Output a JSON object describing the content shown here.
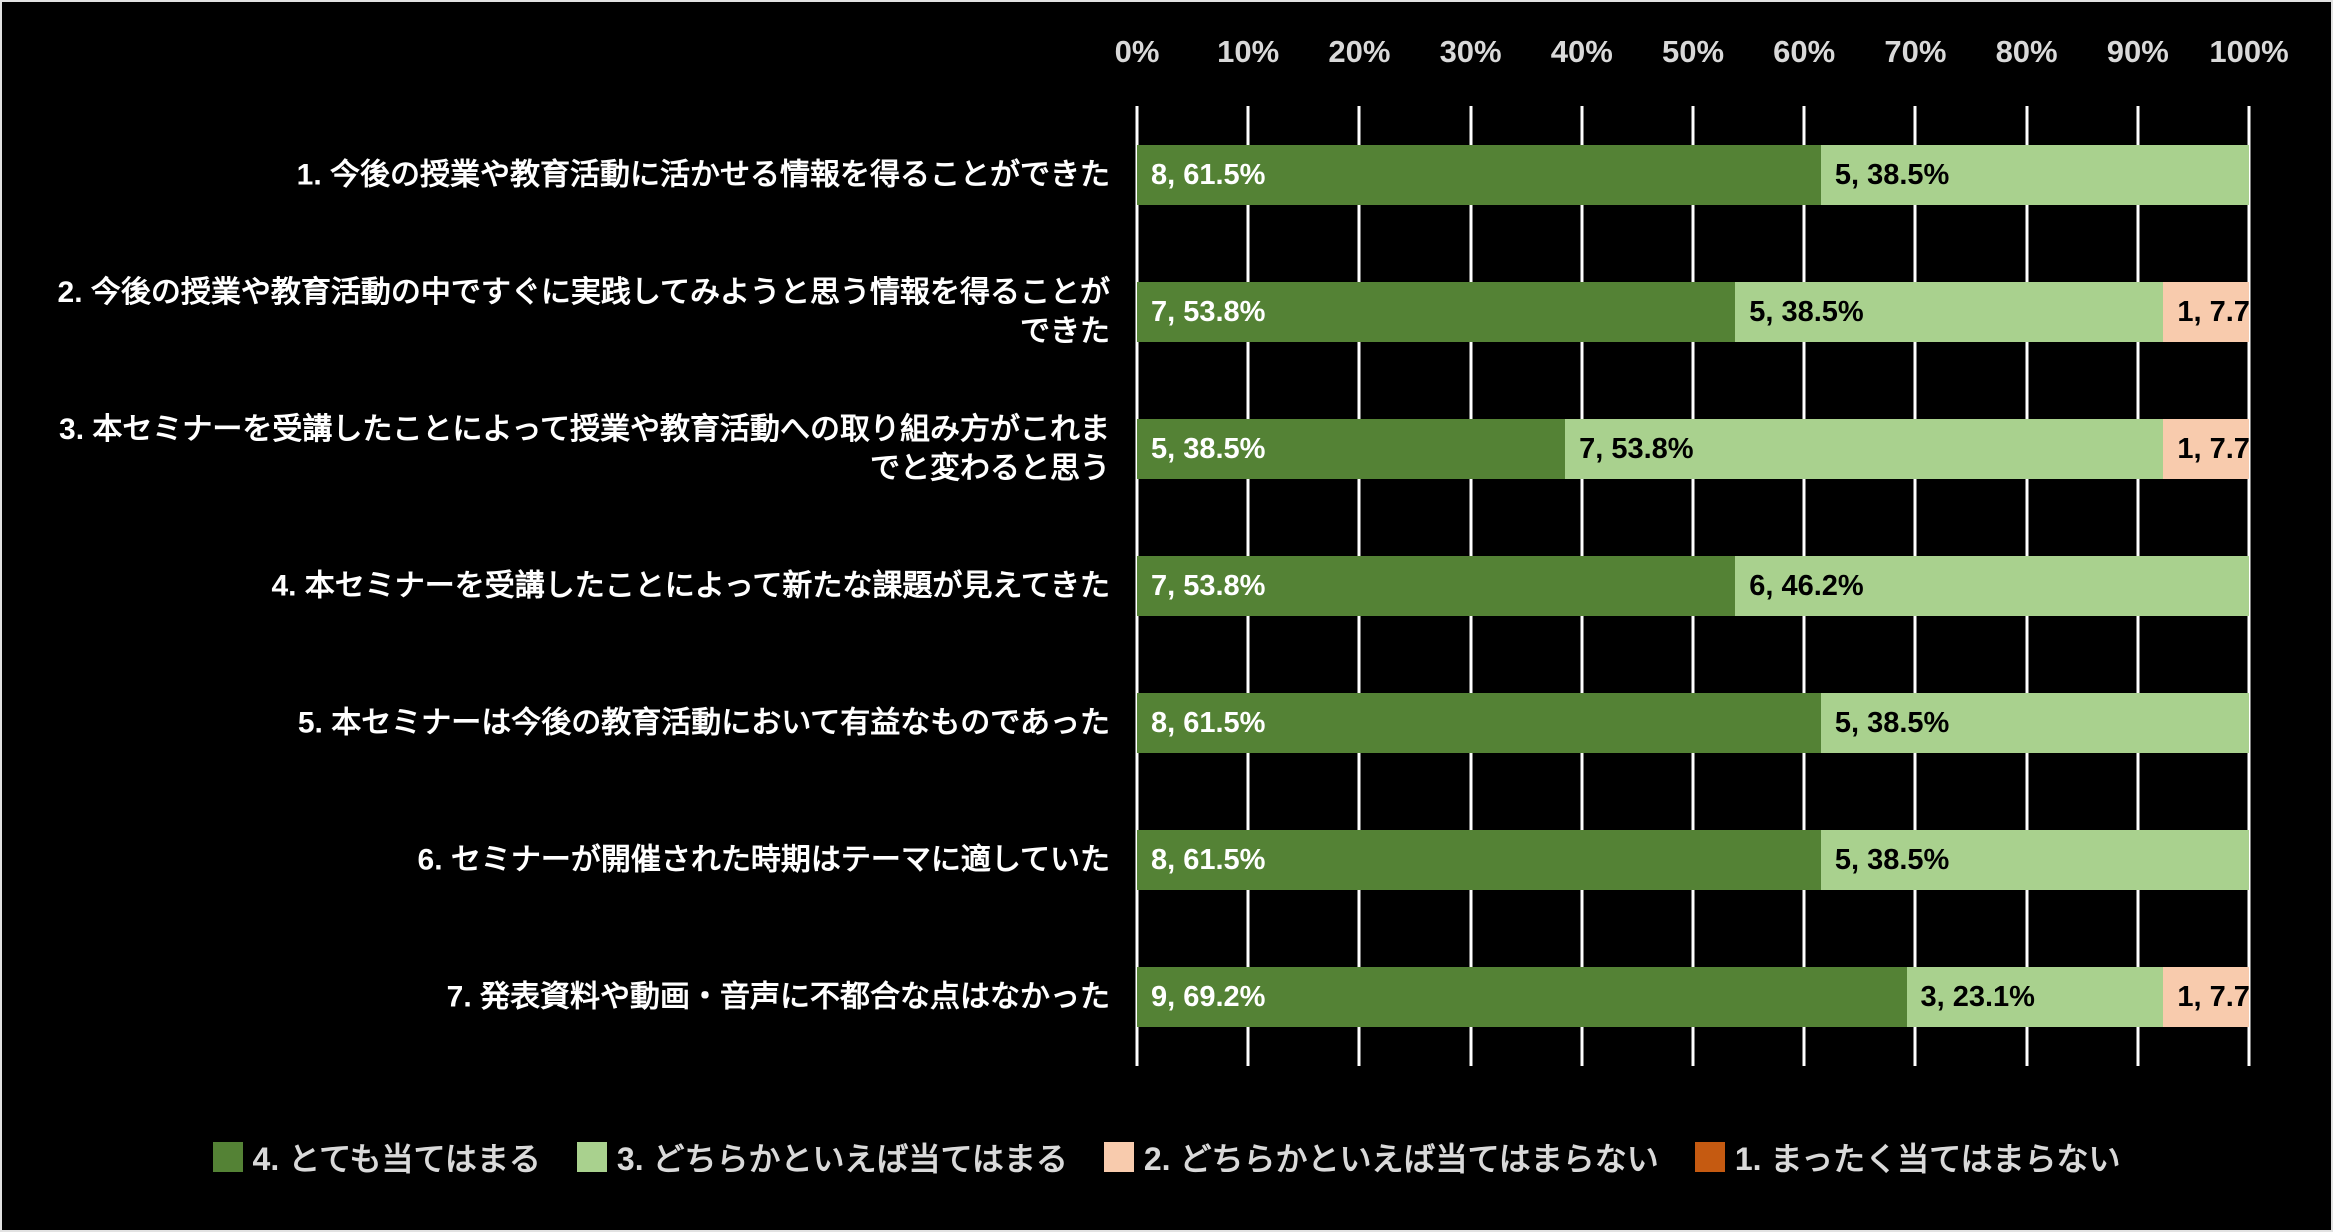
{
  "chart_data": {
    "type": "bar",
    "orientation": "horizontal_stacked",
    "title": "",
    "xlabel": "",
    "ylabel": "",
    "xlim": [
      0,
      100
    ],
    "x_ticks": [
      "0%",
      "10%",
      "20%",
      "30%",
      "40%",
      "50%",
      "60%",
      "70%",
      "80%",
      "90%",
      "100%"
    ],
    "grid": true,
    "legend_position": "bottom",
    "background_color": "#000000",
    "gridline_color": "#ffffff",
    "categories": [
      "1. 今後の授業や教育活動に活かせる情報を得ることができた",
      "2. 今後の授業や教育活動の中ですぐに実践してみようと思う情報を得ることができた",
      "3. 本セミナーを受講したことによって授業や教育活動への取り組み方がこれまでと変わると思う",
      "4. 本セミナーを受講したことによって新たな課題が見えてきた",
      "5. 本セミナーは今後の教育活動において有益なものであった",
      "6. セミナーが開催された時期はテーマに適していた",
      "7. 発表資料や動画・音声に不都合な点はなかった"
    ],
    "series": [
      {
        "name": "4. とても当てはまる",
        "color": "#548235",
        "label_color": "#ffffff",
        "counts": [
          8,
          7,
          5,
          7,
          8,
          8,
          9
        ],
        "percents": [
          61.5,
          53.8,
          38.5,
          53.8,
          61.5,
          61.5,
          69.2
        ]
      },
      {
        "name": "3. どちらかといえば当てはまる",
        "color": "#a9d18e",
        "label_color": "#000000",
        "counts": [
          5,
          5,
          7,
          6,
          5,
          5,
          3
        ],
        "percents": [
          38.5,
          38.5,
          53.8,
          46.2,
          38.5,
          38.5,
          23.1
        ]
      },
      {
        "name": "2. どちらかといえば当てはまらない",
        "color": "#f8cbad",
        "label_color": "#000000",
        "counts": [
          0,
          1,
          1,
          0,
          0,
          0,
          1
        ],
        "percents": [
          0,
          7.7,
          7.7,
          0,
          0,
          0,
          7.7
        ]
      },
      {
        "name": "1. まったく当てはまらない",
        "color": "#c55a11",
        "label_color": "#ffffff",
        "counts": [
          0,
          0,
          0,
          0,
          0,
          0,
          0
        ],
        "percents": [
          0,
          0,
          0,
          0,
          0,
          0,
          0
        ]
      }
    ],
    "label_format": "{count}, {percent}%"
  }
}
